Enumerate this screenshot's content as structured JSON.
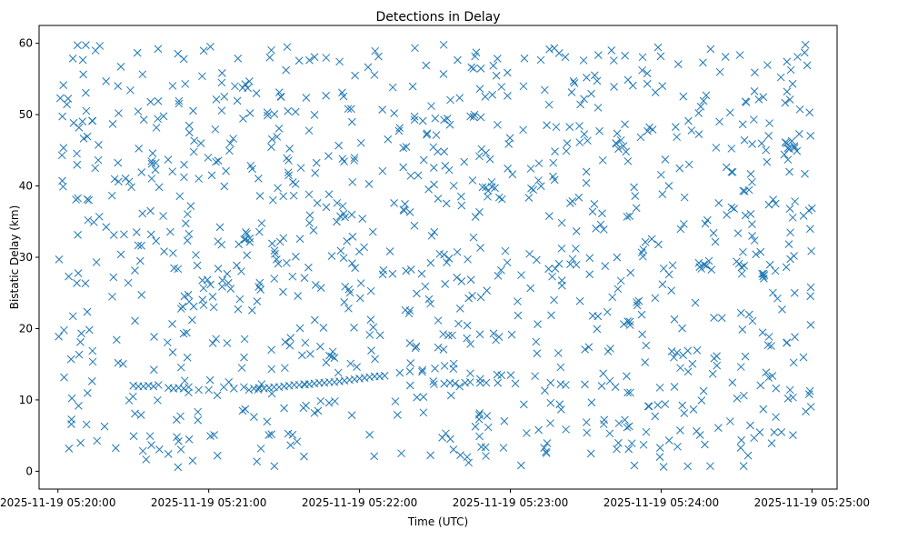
{
  "chart_data": {
    "type": "scatter",
    "title": "Detections in Delay",
    "xlabel": "Time (UTC)",
    "ylabel": "Bistatic Delay (km)",
    "marker": "x",
    "marker_color": "#1f77b4",
    "x_unit": "seconds after 2025-11-19 05:20:00",
    "xlim": [
      -7.5,
      310
    ],
    "ylim": [
      -2.5,
      62.5
    ],
    "x_ticks": [
      {
        "value": 0,
        "label": "2025-11-19 05:20:00"
      },
      {
        "value": 60,
        "label": "2025-11-19 05:21:00"
      },
      {
        "value": 120,
        "label": "2025-11-19 05:22:00"
      },
      {
        "value": 180,
        "label": "2025-11-19 05:23:00"
      },
      {
        "value": 240,
        "label": "2025-11-19 05:24:00"
      },
      {
        "value": 300,
        "label": "2025-11-19 05:25:00"
      }
    ],
    "y_ticks": [
      {
        "value": 0,
        "label": "0"
      },
      {
        "value": 10,
        "label": "10"
      },
      {
        "value": 20,
        "label": "20"
      },
      {
        "value": 30,
        "label": "30"
      },
      {
        "value": 40,
        "label": "40"
      },
      {
        "value": 50,
        "label": "50"
      },
      {
        "value": 60,
        "label": "60"
      }
    ],
    "track_points": [
      [
        66,
        11.8
      ],
      [
        70,
        11.6
      ],
      [
        74,
        11.8
      ],
      [
        76,
        11.4
      ],
      [
        78,
        11.6
      ],
      [
        80,
        11.7
      ],
      [
        82,
        11.6
      ],
      [
        84,
        11.7
      ],
      [
        86,
        11.8
      ],
      [
        88,
        11.8
      ],
      [
        90,
        11.9
      ],
      [
        92,
        12.0
      ],
      [
        94,
        12.1
      ],
      [
        96,
        12.1
      ],
      [
        98,
        12.2
      ],
      [
        100,
        12.2
      ],
      [
        102,
        12.3
      ],
      [
        104,
        12.4
      ],
      [
        106,
        12.4
      ],
      [
        108,
        12.5
      ],
      [
        110,
        12.5
      ],
      [
        112,
        12.6
      ],
      [
        114,
        12.7
      ],
      [
        116,
        12.8
      ],
      [
        118,
        12.9
      ],
      [
        120,
        13.0
      ],
      [
        122,
        13.1
      ],
      [
        124,
        13.2
      ],
      [
        126,
        13.3
      ],
      [
        128,
        13.3
      ],
      [
        130,
        13.4
      ],
      [
        136,
        13.8
      ],
      [
        140,
        14.0
      ],
      [
        145,
        14.2
      ],
      [
        150,
        14.4
      ],
      [
        156,
        12.4
      ],
      [
        158,
        12.3
      ],
      [
        162,
        12.4
      ],
      [
        164,
        12.5
      ],
      [
        168,
        12.4
      ],
      [
        175,
        12.4
      ],
      [
        182,
        12.3
      ],
      [
        196,
        12.4
      ],
      [
        200,
        12.2
      ],
      [
        202,
        12.1
      ],
      [
        30,
        12.0
      ],
      [
        32,
        11.9
      ],
      [
        34,
        11.9
      ],
      [
        36,
        12.0
      ],
      [
        38,
        11.9
      ],
      [
        40,
        12.1
      ],
      [
        44,
        11.7
      ],
      [
        46,
        11.6
      ],
      [
        48,
        11.7
      ],
      [
        50,
        11.6
      ],
      [
        52,
        11.8
      ],
      [
        56,
        11.4
      ],
      [
        60,
        11.4
      ],
      [
        54,
        23.1
      ],
      [
        58,
        23.3
      ],
      [
        62,
        23.0
      ],
      [
        222,
        46.0
      ],
      [
        223,
        45.2
      ],
      [
        224,
        46.4
      ],
      [
        225,
        45.6
      ],
      [
        226,
        44.8
      ],
      [
        290,
        46.0
      ],
      [
        291,
        45.2
      ],
      [
        292,
        46.3
      ],
      [
        293,
        45.6
      ],
      [
        294,
        44.9
      ],
      [
        289,
        44.4
      ],
      [
        268,
        37.0
      ],
      [
        269,
        36.8
      ],
      [
        270,
        29.4
      ],
      [
        271,
        29.1
      ],
      [
        272,
        28.6
      ],
      [
        273,
        28.8
      ],
      [
        255,
        29.2
      ],
      [
        256,
        28.4
      ],
      [
        257,
        29.0
      ],
      [
        258,
        28.8
      ],
      [
        259,
        29.5
      ],
      [
        108,
        16.2
      ],
      [
        109,
        16.1
      ],
      [
        110,
        15.9
      ]
    ],
    "noise_points_count": 1020,
    "noise_seed": 20251119,
    "noise_note": "Randomly scattered detections filling 0–300 s and 0–60 km"
  }
}
